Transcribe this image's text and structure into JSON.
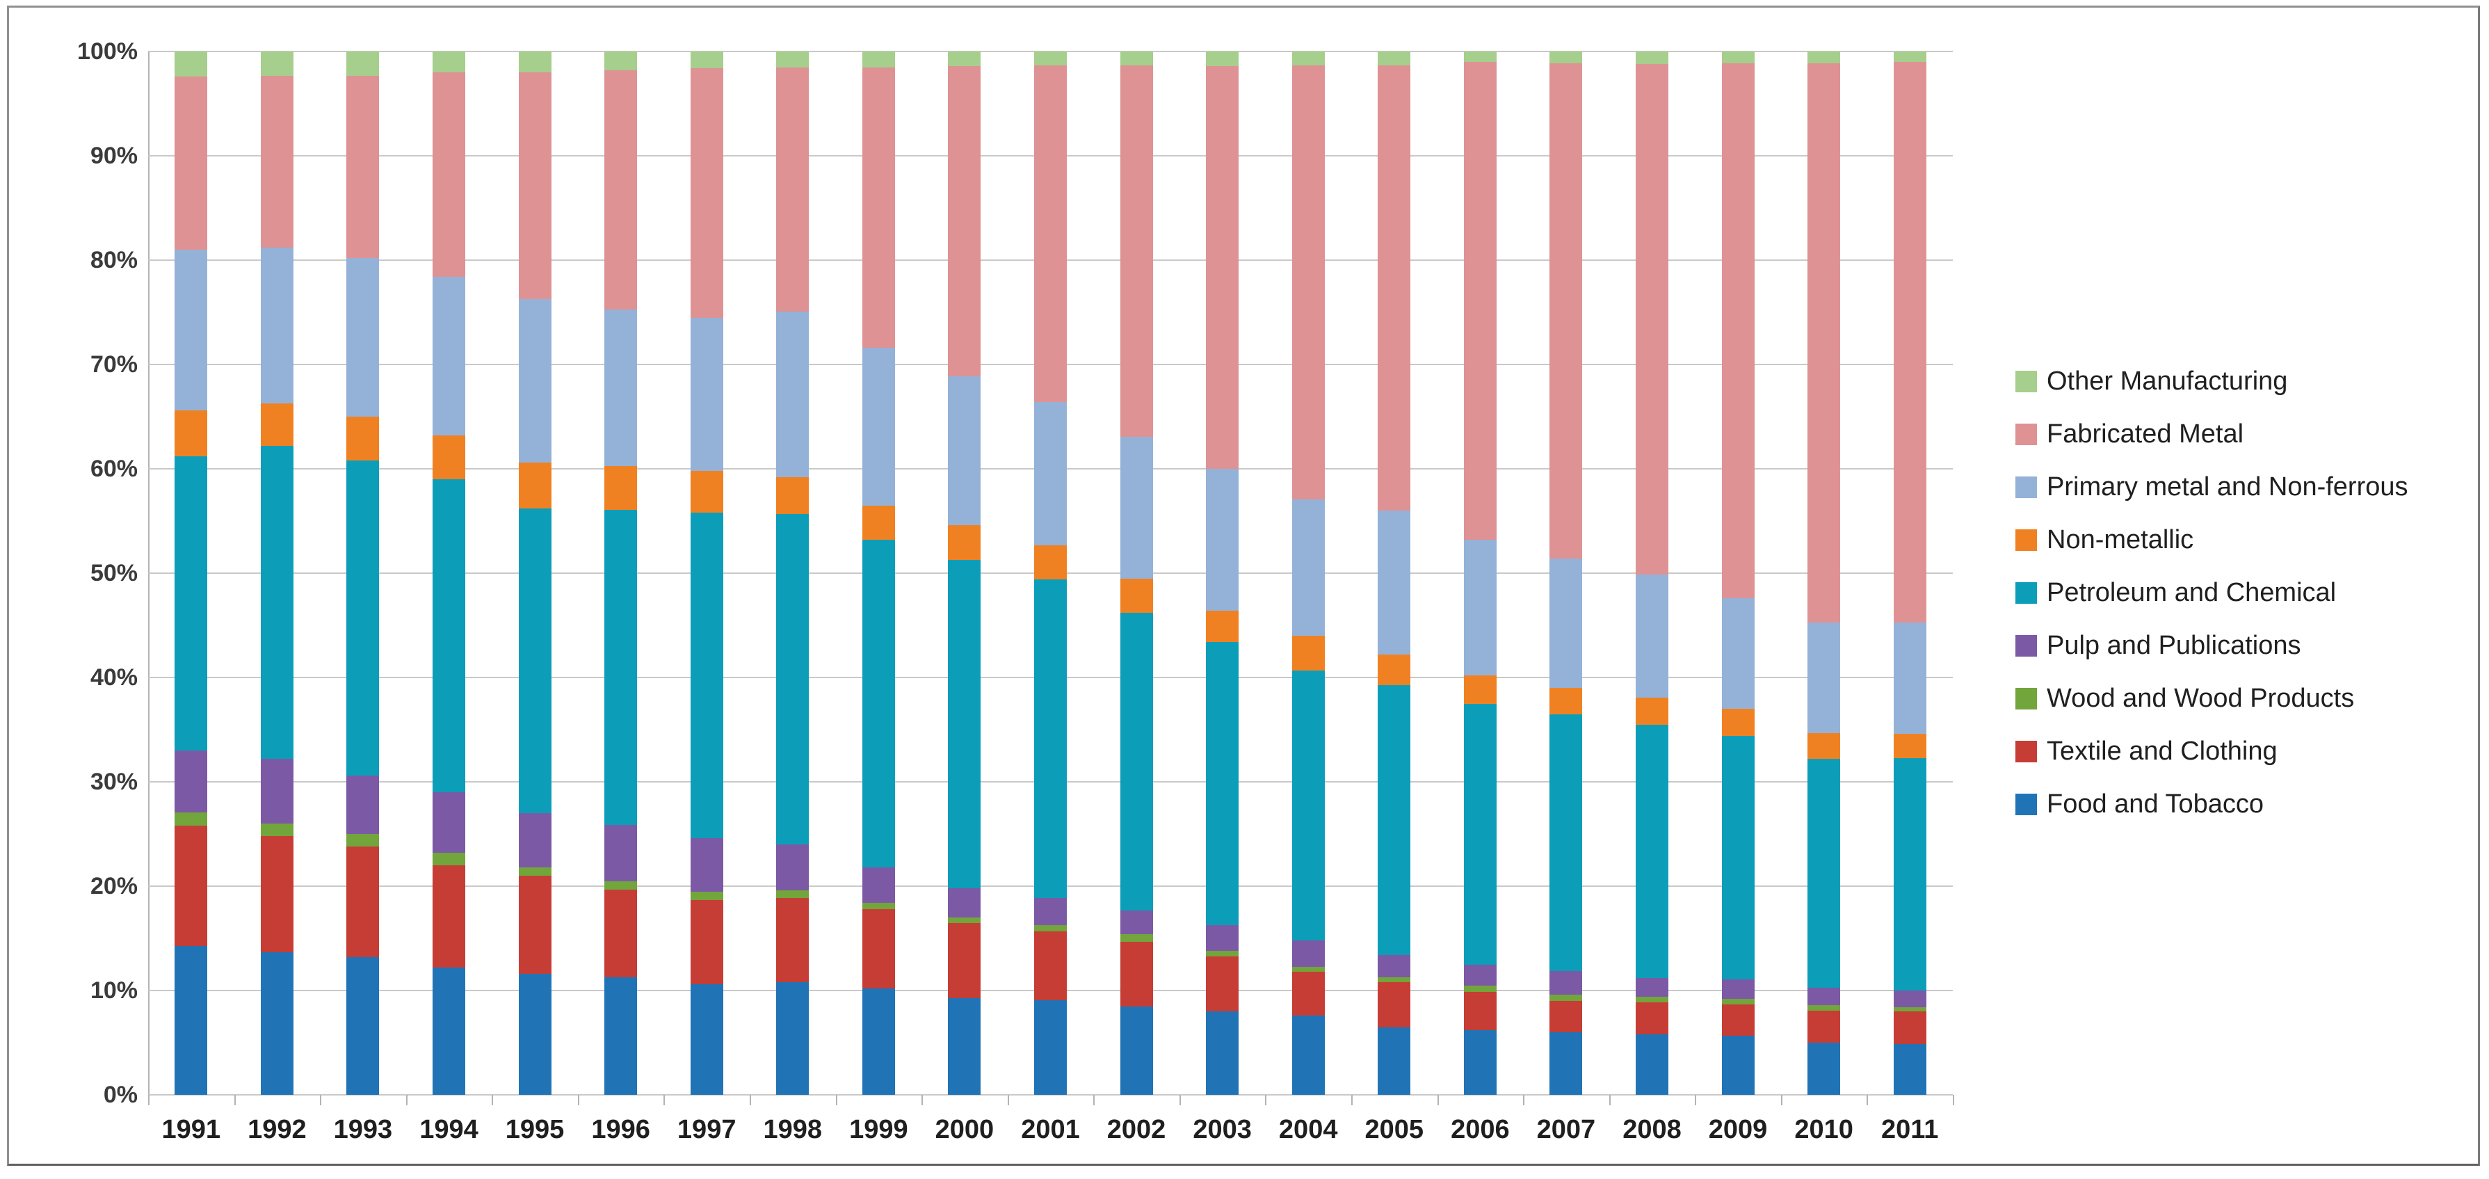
{
  "chart_data": {
    "type": "bar",
    "stacked": true,
    "stacking": "percent",
    "title": "",
    "xlabel": "",
    "ylabel": "",
    "ylim": [
      0,
      100
    ],
    "grid": true,
    "legend_position": "right",
    "y_ticks": [
      "0%",
      "10%",
      "20%",
      "30%",
      "40%",
      "50%",
      "60%",
      "70%",
      "80%",
      "90%",
      "100%"
    ],
    "categories": [
      "1991",
      "1992",
      "1993",
      "1994",
      "1995",
      "1996",
      "1997",
      "1998",
      "1999",
      "2000",
      "2001",
      "2002",
      "2003",
      "2004",
      "2005",
      "2006",
      "2007",
      "2008",
      "2009",
      "2010",
      "2011"
    ],
    "series": [
      {
        "name": "Food and Tobacco",
        "color": "#2074B6",
        "values": [
          14.3,
          13.7,
          13.2,
          12.2,
          11.6,
          11.3,
          10.6,
          10.8,
          10.2,
          9.3,
          9.1,
          8.5,
          8.0,
          7.6,
          6.5,
          6.2,
          6.0,
          5.8,
          5.7,
          5.0,
          4.9
        ]
      },
      {
        "name": "Textile and Clothing",
        "color": "#C63D36",
        "values": [
          11.5,
          11.1,
          10.6,
          9.8,
          9.4,
          8.4,
          8.1,
          8.1,
          7.6,
          7.2,
          6.6,
          6.2,
          5.3,
          4.2,
          4.3,
          3.7,
          3.0,
          3.1,
          3.0,
          3.1,
          3.1
        ]
      },
      {
        "name": "Wood and Wood Products",
        "color": "#72A53B",
        "values": [
          1.3,
          1.2,
          1.2,
          1.2,
          0.8,
          0.8,
          0.8,
          0.7,
          0.6,
          0.5,
          0.6,
          0.7,
          0.5,
          0.5,
          0.5,
          0.6,
          0.6,
          0.5,
          0.5,
          0.5,
          0.4
        ]
      },
      {
        "name": "Pulp and Publications",
        "color": "#7B59A5",
        "values": [
          5.9,
          6.2,
          5.6,
          5.8,
          5.2,
          5.4,
          5.1,
          4.4,
          3.4,
          2.8,
          2.6,
          2.3,
          2.5,
          2.5,
          2.1,
          2.0,
          2.3,
          1.8,
          1.9,
          1.7,
          1.6
        ]
      },
      {
        "name": "Petroleum and Chemical",
        "color": "#0C9EB9",
        "values": [
          28.2,
          30.0,
          30.2,
          30.0,
          29.2,
          30.2,
          31.2,
          31.7,
          31.4,
          31.5,
          30.5,
          28.5,
          27.1,
          25.9,
          25.9,
          25.0,
          24.6,
          24.3,
          23.3,
          21.9,
          22.3
        ]
      },
      {
        "name": "Non-metallic",
        "color": "#F08122",
        "values": [
          4.4,
          4.1,
          4.2,
          4.2,
          4.4,
          4.2,
          4.0,
          3.5,
          3.3,
          3.3,
          3.3,
          3.3,
          3.0,
          3.3,
          2.9,
          2.7,
          2.5,
          2.6,
          2.6,
          2.5,
          2.3
        ]
      },
      {
        "name": "Primary metal and Non-ferrous",
        "color": "#94B2D8",
        "values": [
          15.4,
          14.9,
          15.2,
          15.2,
          15.7,
          15.0,
          14.7,
          15.9,
          15.1,
          14.3,
          13.7,
          13.6,
          13.6,
          13.1,
          13.8,
          13.0,
          12.4,
          11.8,
          10.6,
          10.6,
          10.7
        ]
      },
      {
        "name": "Fabricated Metal",
        "color": "#DE9294",
        "values": [
          16.6,
          16.5,
          17.5,
          19.6,
          21.7,
          22.9,
          23.9,
          23.4,
          26.9,
          29.7,
          32.3,
          35.6,
          38.6,
          41.6,
          42.7,
          45.8,
          47.5,
          48.9,
          51.3,
          53.6,
          53.7
        ]
      },
      {
        "name": "Other Manufacturing",
        "color": "#A6CE8C",
        "values": [
          2.4,
          2.3,
          2.3,
          2.0,
          2.0,
          1.8,
          1.6,
          1.5,
          1.5,
          1.4,
          1.3,
          1.3,
          1.4,
          1.3,
          1.3,
          1.0,
          1.1,
          1.2,
          1.1,
          1.1,
          1.0
        ]
      }
    ],
    "legend_items": [
      {
        "label": "Other Manufacturing",
        "color": "#A6CE8C"
      },
      {
        "label": "Fabricated Metal",
        "color": "#DE9294"
      },
      {
        "label": "Primary metal and Non-ferrous",
        "color": "#94B2D8"
      },
      {
        "label": "Non-metallic",
        "color": "#F08122"
      },
      {
        "label": "Petroleum and Chemical",
        "color": "#0C9EB9"
      },
      {
        "label": "Pulp and Publications",
        "color": "#7B59A5"
      },
      {
        "label": "Wood and Wood Products",
        "color": "#72A53B"
      },
      {
        "label": "Textile and Clothing",
        "color": "#C63D36"
      },
      {
        "label": "Food and Tobacco",
        "color": "#2074B6"
      }
    ]
  },
  "colors": {
    "gridline": "#C9C9C9",
    "axis_line": "#B3B3B3",
    "frame_border": "#909090",
    "background": "#FFFFFF"
  }
}
